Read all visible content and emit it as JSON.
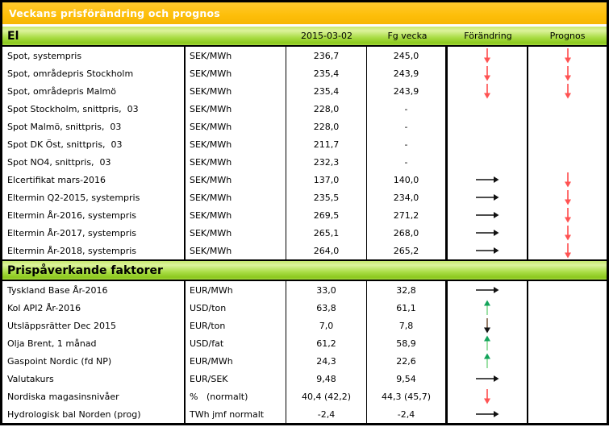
{
  "title": "Veckans prisförändring och prognos",
  "columns": {
    "date": "2015-03-02",
    "previous": "Fg vecka",
    "change": "Förändring",
    "forecast": "Prognos"
  },
  "colors": {
    "title_bar": "#fdbe09",
    "section_bar_green": "#9ed335",
    "border": "#000000",
    "red_arrow": "#ff6161",
    "green_arrow_head": "#12a35a",
    "green_arrow_shaft": "#9ce0a5",
    "dark_arrow_head": "#111111",
    "dark_arrow_shaft": "#8a6f58",
    "black_arrow": "#111111"
  },
  "arrow_styles": {
    "down-red": {
      "dir": "down",
      "shaft": "#ff6161",
      "head": "#ff5252"
    },
    "up-green": {
      "dir": "up",
      "shaft": "#9ce0a5",
      "head": "#12a35a"
    },
    "down-dark": {
      "dir": "down",
      "shaft": "#8a6f58",
      "head": "#111111"
    },
    "right-black": {
      "dir": "right",
      "shaft": "#111111",
      "head": "#111111"
    }
  },
  "sections": [
    {
      "name": "El",
      "rows": [
        {
          "label": "Spot, systempris",
          "unit": "SEK/MWh",
          "current": "236,7",
          "previous": "245,0",
          "change": "down-red",
          "forecast": "down-red"
        },
        {
          "label": "Spot, områdepris Stockholm",
          "unit": "SEK/MWh",
          "current": "235,4",
          "previous": "243,9",
          "change": "down-red",
          "forecast": "down-red"
        },
        {
          "label": "Spot, områdepris Malmö",
          "unit": "SEK/MWh",
          "current": "235,4",
          "previous": "243,9",
          "change": "down-red",
          "forecast": "down-red"
        },
        {
          "label": "Spot Stockholm, snittpris,  03",
          "unit": "SEK/MWh",
          "current": "228,0",
          "previous": "-",
          "change": "",
          "forecast": ""
        },
        {
          "label": "Spot Malmö, snittpris,  03",
          "unit": "SEK/MWh",
          "current": "228,0",
          "previous": "-",
          "change": "",
          "forecast": ""
        },
        {
          "label": "Spot DK Öst, snittpris,  03",
          "unit": "SEK/MWh",
          "current": "211,7",
          "previous": "-",
          "change": "",
          "forecast": ""
        },
        {
          "label": "Spot NO4, snittpris,  03",
          "unit": "SEK/MWh",
          "current": "232,3",
          "previous": "-",
          "change": "",
          "forecast": ""
        },
        {
          "label": "Elcertifikat mars-2016",
          "unit": "SEK/MWh",
          "current": "137,0",
          "previous": "140,0",
          "change": "right-black",
          "forecast": "down-red"
        },
        {
          "label": "Eltermin Q2-2015, systempris",
          "unit": "SEK/MWh",
          "current": "235,5",
          "previous": "234,0",
          "change": "right-black",
          "forecast": "down-red"
        },
        {
          "label": "Eltermin År-2016, systempris",
          "unit": "SEK/MWh",
          "current": "269,5",
          "previous": "271,2",
          "change": "right-black",
          "forecast": "down-red"
        },
        {
          "label": "Eltermin År-2017, systempris",
          "unit": "SEK/MWh",
          "current": "265,1",
          "previous": "268,0",
          "change": "right-black",
          "forecast": "down-red"
        },
        {
          "label": "Eltermin År-2018, systempris",
          "unit": "SEK/MWh",
          "current": "264,0",
          "previous": "265,2",
          "change": "right-black",
          "forecast": "down-red"
        }
      ]
    },
    {
      "name": "Prispåverkande faktorer",
      "rows": [
        {
          "label": "Tyskland Base År-2016",
          "unit": "EUR/MWh",
          "current": "33,0",
          "previous": "32,8",
          "change": "right-black",
          "forecast": ""
        },
        {
          "label": "Kol API2 År-2016",
          "unit": "USD/ton",
          "current": "63,8",
          "previous": "61,1",
          "change": "up-green",
          "forecast": ""
        },
        {
          "label": "Utsläppsrätter Dec 2015",
          "unit": "EUR/ton",
          "current": "7,0",
          "previous": "7,8",
          "change": "down-dark",
          "forecast": ""
        },
        {
          "label": "Olja Brent, 1 månad",
          "unit": "USD/fat",
          "current": "61,2",
          "previous": "58,9",
          "change": "up-green",
          "forecast": ""
        },
        {
          "label": "Gaspoint Nordic (fd NP)",
          "unit": "EUR/MWh",
          "current": "24,3",
          "previous": "22,6",
          "change": "up-green",
          "forecast": ""
        },
        {
          "label": "Valutakurs",
          "unit": "EUR/SEK",
          "current": "9,48",
          "previous": "9,54",
          "change": "right-black",
          "forecast": ""
        },
        {
          "label": "Nordiska magasinsnivåer",
          "unit": "%   (normalt)",
          "current": "40,4 (42,2)",
          "previous": "44,3 (45,7)",
          "change": "down-red",
          "forecast": ""
        },
        {
          "label": "Hydrologisk bal Norden (prog)",
          "unit": "TWh jmf normalt",
          "current": "-2,4",
          "previous": "-2,4",
          "change": "right-black",
          "forecast": ""
        }
      ]
    }
  ]
}
